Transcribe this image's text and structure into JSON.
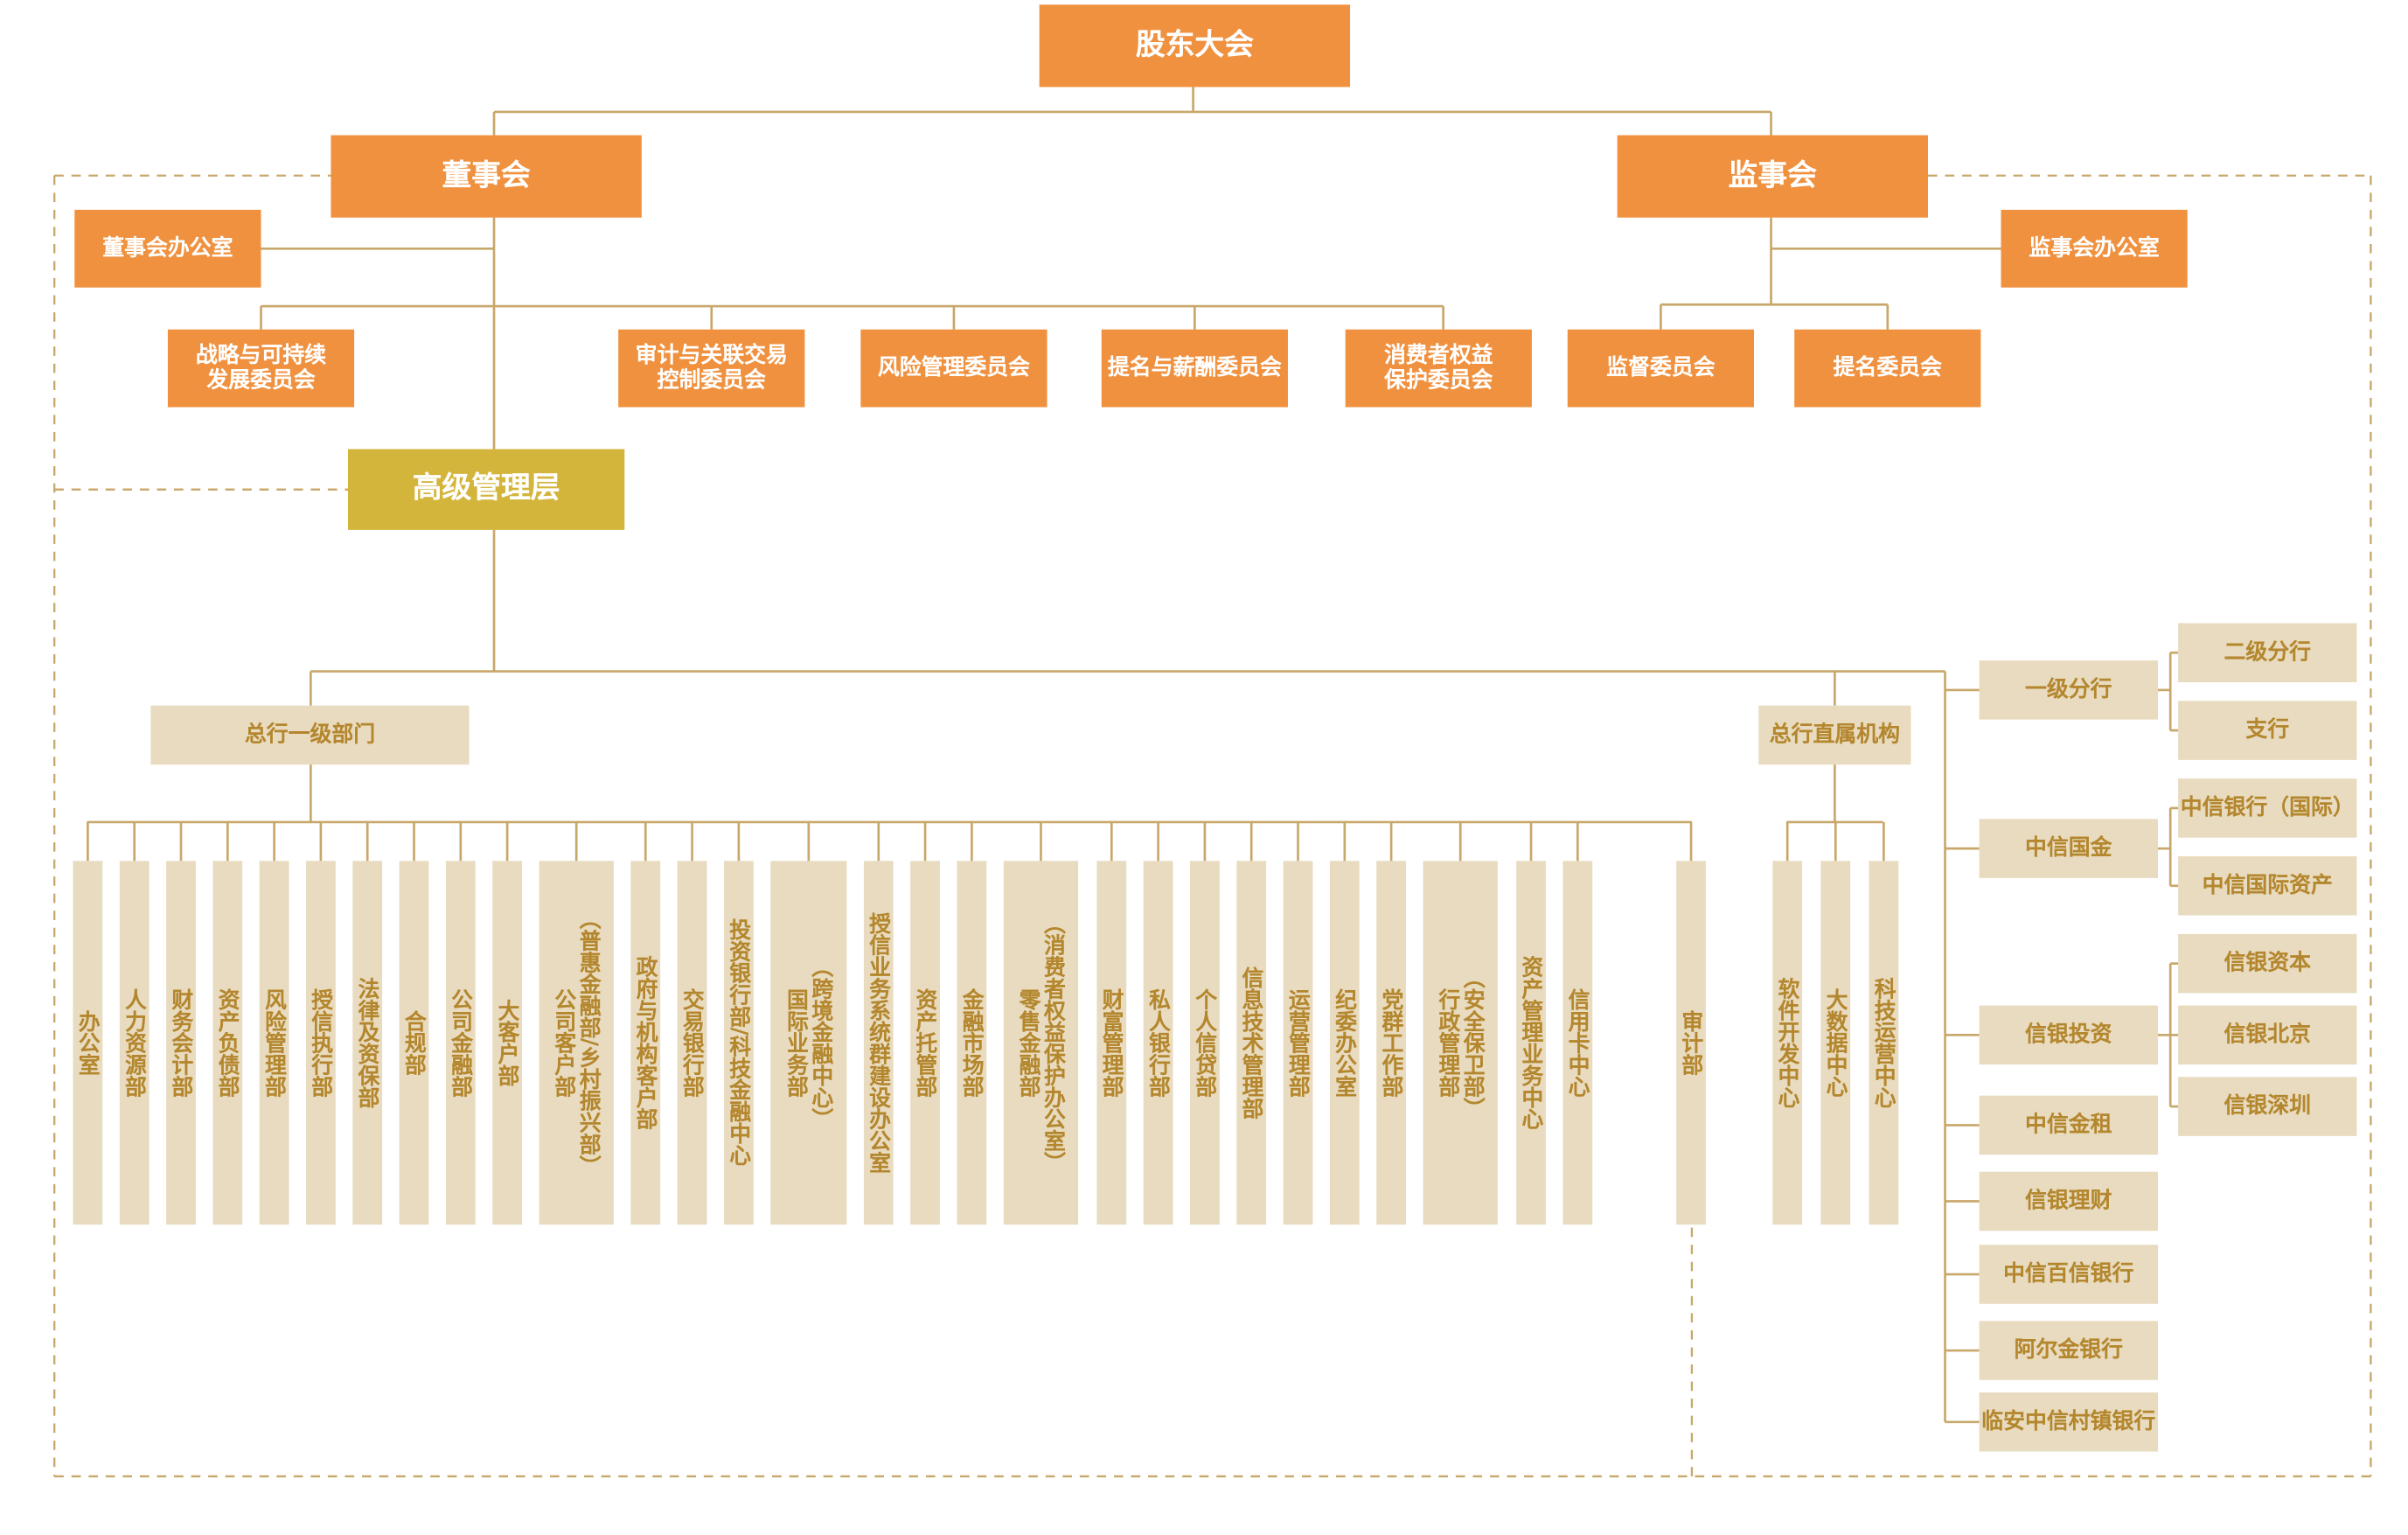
{
  "colors": {
    "board": "#f0913f",
    "senior_mgmt": "#d4b53c",
    "unit": "#e8dbbf",
    "unit_text": "#b4872e",
    "line": "#c8a76a"
  },
  "top": {
    "shareholders": "股东大会",
    "board": "董事会",
    "supervisors": "监事会",
    "board_office": "董事会办公室",
    "supervisors_office": "监事会办公室",
    "senior_management": "高级管理层"
  },
  "board_committees": [
    {
      "name": "战略与可持续\n发展委员会"
    },
    {
      "name": "审计与关联交易\n控制委员会"
    },
    {
      "name": "风险管理委员会"
    },
    {
      "name": "提名与薪酬委员会"
    },
    {
      "name": "消费者权益\n保护委员会"
    }
  ],
  "supervisor_committees": [
    {
      "name": "监督委员会"
    },
    {
      "name": "提名委员会"
    }
  ],
  "head_office": {
    "title": "总行一级部门",
    "departments": [
      {
        "name": "办公室"
      },
      {
        "name": "人力资源部"
      },
      {
        "name": "财务会计部"
      },
      {
        "name": "资产负债部"
      },
      {
        "name": "风险管理部"
      },
      {
        "name": "授信执行部"
      },
      {
        "name": "法律及资保部"
      },
      {
        "name": "合规部"
      },
      {
        "name": "公司金融部"
      },
      {
        "name": "大客户部"
      },
      {
        "name": "公司客户部",
        "note": "（普惠金融部/乡村振兴部）"
      },
      {
        "name": "政府与机构客户部"
      },
      {
        "name": "交易银行部"
      },
      {
        "name": "投资银行部/科技金融中心"
      },
      {
        "name": "国际业务部",
        "note": "（跨境金融中心）"
      },
      {
        "name": "授信业务系统群建设办公室"
      },
      {
        "name": "资产托管部"
      },
      {
        "name": "金融市场部"
      },
      {
        "name": "零售金融部",
        "note": "（消费者权益保护办公室）"
      },
      {
        "name": "财富管理部"
      },
      {
        "name": "私人银行部"
      },
      {
        "name": "个人信贷部"
      },
      {
        "name": "信息技术管理部"
      },
      {
        "name": "运营管理部"
      },
      {
        "name": "纪委办公室"
      },
      {
        "name": "党群工作部"
      },
      {
        "name": "行政管理部",
        "note": "（安全保卫部）"
      },
      {
        "name": "资产管理业务中心"
      },
      {
        "name": "信用卡中心"
      },
      {
        "name": "审计部"
      }
    ]
  },
  "direct_units": {
    "title": "总行直属机构",
    "centers": [
      {
        "name": "软件开发中心"
      },
      {
        "name": "大数据中心"
      },
      {
        "name": "科技运营中心"
      }
    ]
  },
  "subsidiaries": [
    {
      "name": "一级分行",
      "children": [
        {
          "name": "二级分行"
        },
        {
          "name": "支行"
        }
      ]
    },
    {
      "name": "中信国金",
      "children": [
        {
          "name": "中信银行（国际）"
        },
        {
          "name": "中信国际资产"
        }
      ]
    },
    {
      "name": "信银投资",
      "children": [
        {
          "name": "信银资本"
        },
        {
          "name": "信银北京"
        },
        {
          "name": "信银深圳"
        }
      ]
    },
    {
      "name": "中信金租"
    },
    {
      "name": "信银理财"
    },
    {
      "name": "中信百信银行"
    },
    {
      "name": "阿尔金银行"
    },
    {
      "name": "临安中信村镇银行"
    }
  ]
}
